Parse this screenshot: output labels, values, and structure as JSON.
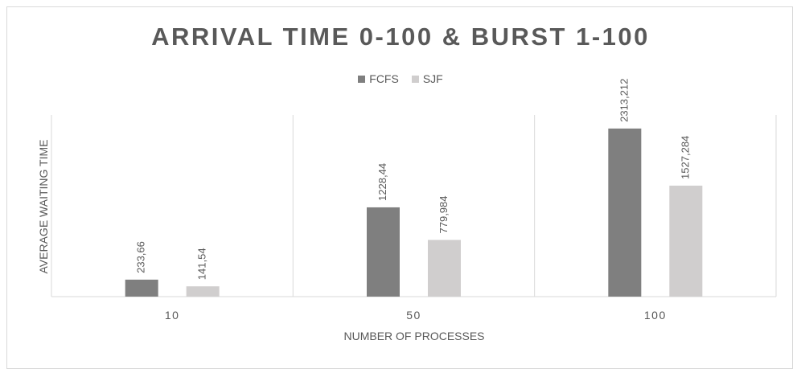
{
  "chart_data": {
    "type": "bar",
    "title": "ARRIVAL TIME 0-100 & BURST 1-100",
    "xlabel": "NUMBER OF PROCESSES",
    "ylabel": "AVERAGE WAITING TIME",
    "categories": [
      "10",
      "50",
      "100"
    ],
    "series": [
      {
        "name": "FCFS",
        "color": "#7f7f7f",
        "values": [
          233.66,
          1228.44,
          2313.212
        ],
        "labels": [
          "233,66",
          "1228,44",
          "2313,212"
        ]
      },
      {
        "name": "SJF",
        "color": "#d0cece",
        "values": [
          141.54,
          779.984,
          1527.284
        ],
        "labels": [
          "141,54",
          "779,984",
          "1527,284"
        ]
      }
    ],
    "ylim": [
      0,
      2500
    ],
    "grid": false,
    "legend_position": "top"
  }
}
